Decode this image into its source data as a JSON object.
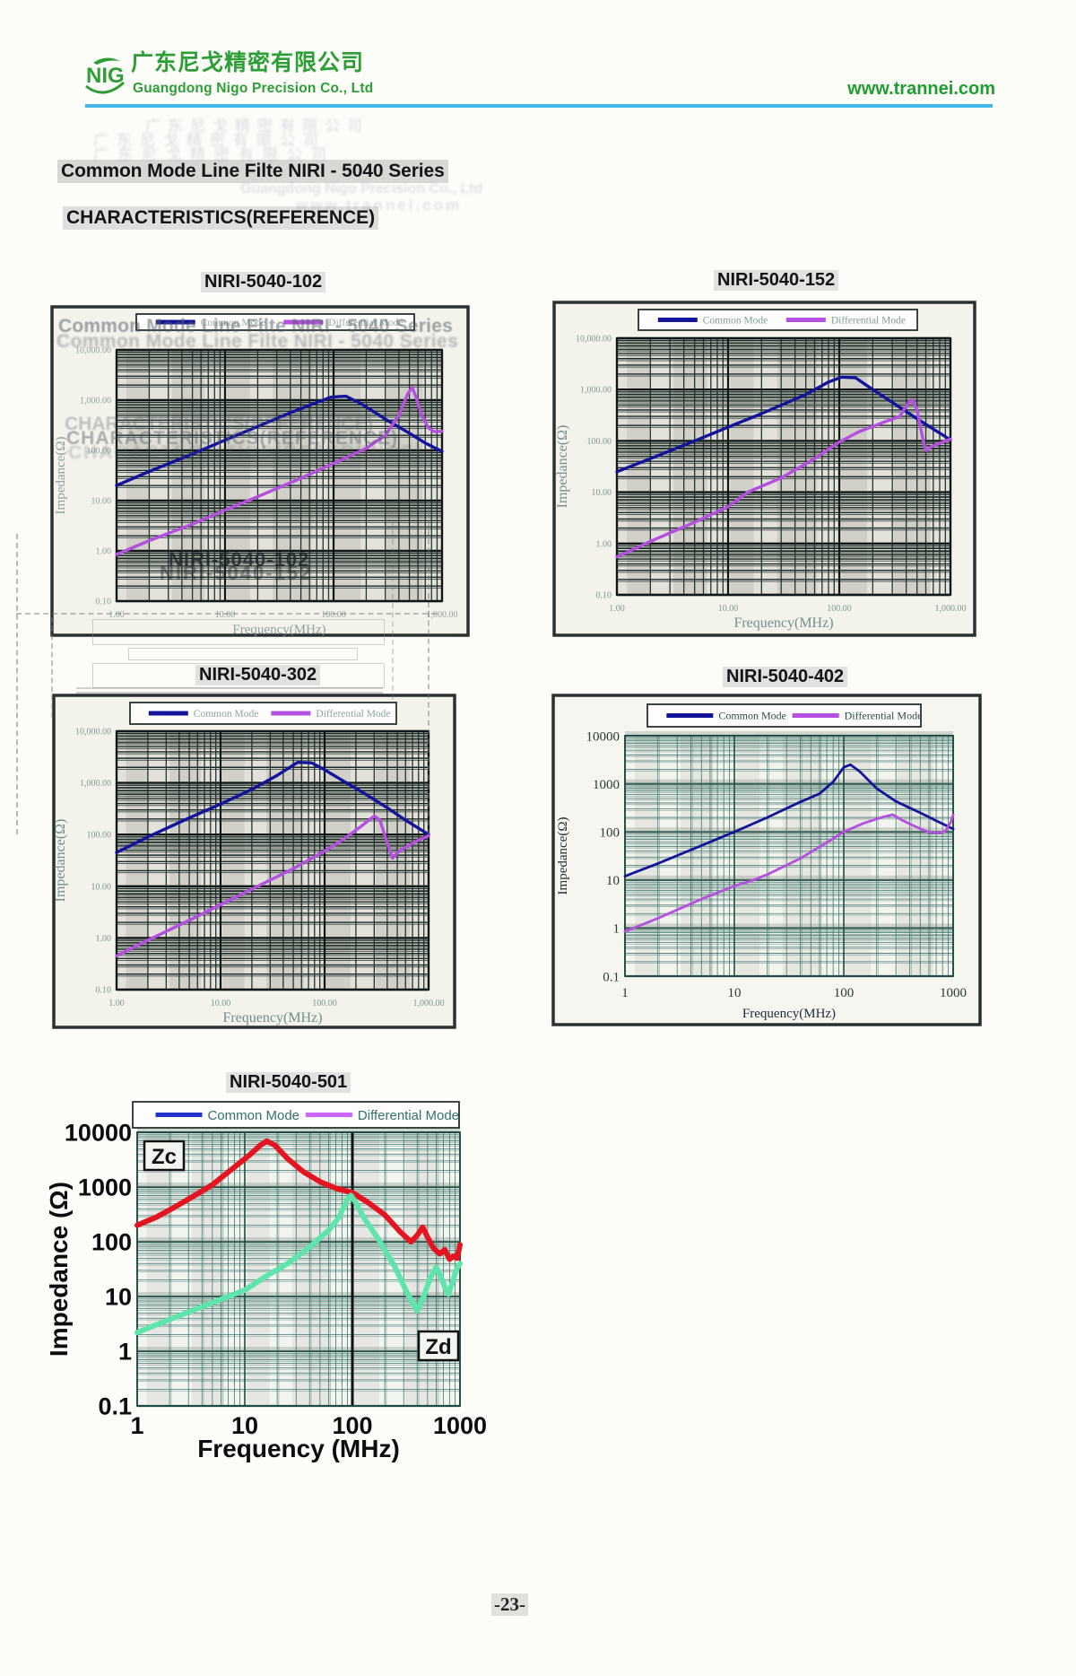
{
  "header": {
    "logo_text": "NIG",
    "company_cn": "广东尼戈精密有限公司",
    "company_en": "Guangdong Nigo Precision Co., Ltd",
    "website": "www.trannei.com",
    "brand_green": "#2e9e36",
    "rule_blue": "#45b6e8"
  },
  "title": "Common Mode Line Filte NIRI - 5040  Series",
  "subtitle": "CHARACTERISTICS(REFERENCE)",
  "page_number": "-23-",
  "ghosts": {
    "cjk_row": "广东尼戈精密有限公司",
    "company_en": "Guangdong Nigo Precision Co., Ltd",
    "website": "www.trannei.com",
    "title": "Common Mode Line Filte NIRI - 5040  Series",
    "subtitle": "CHARACTERISTICS(REFERENCE)",
    "chart102_a": "NIRI-5040-102",
    "chart102_b": "NIRI-5040-152"
  },
  "chart_data": [
    {
      "type": "line",
      "title": "NIRI-5040-102",
      "xlabel": "Frequency(MHz)",
      "ylabel": "Impedance(Ω)",
      "xlim": [
        1,
        1000
      ],
      "ylim": [
        0.1,
        10000
      ],
      "x_ticks": [
        "1.00",
        "10.00",
        "100.00",
        "1,000.00"
      ],
      "y_ticks": [
        "10,000.00",
        "1,000.00",
        "100.00",
        "10.00",
        "1.00",
        "0.10"
      ],
      "legend": [
        {
          "label": "Common Mode",
          "color": "#14149a"
        },
        {
          "label": "Differential Mode",
          "color": "#b44fe0"
        }
      ],
      "series": [
        {
          "name": "Common Mode",
          "color": "#14149a",
          "points": [
            [
              1,
              20
            ],
            [
              2,
              38
            ],
            [
              5,
              85
            ],
            [
              10,
              160
            ],
            [
              20,
              300
            ],
            [
              40,
              560
            ],
            [
              70,
              900
            ],
            [
              95,
              1150
            ],
            [
              130,
              1200
            ],
            [
              180,
              850
            ],
            [
              300,
              420
            ],
            [
              500,
              220
            ],
            [
              700,
              140
            ],
            [
              1000,
              95
            ]
          ]
        },
        {
          "name": "Differential Mode",
          "color": "#b44fe0",
          "points": [
            [
              1,
              0.85
            ],
            [
              2,
              1.6
            ],
            [
              5,
              3.4
            ],
            [
              10,
              6.5
            ],
            [
              20,
              12
            ],
            [
              50,
              28
            ],
            [
              100,
              55
            ],
            [
              200,
              110
            ],
            [
              300,
              200
            ],
            [
              400,
              500
            ],
            [
              480,
              1300
            ],
            [
              530,
              1800
            ],
            [
              580,
              1100
            ],
            [
              650,
              500
            ],
            [
              750,
              280
            ],
            [
              850,
              235
            ],
            [
              1000,
              240
            ]
          ]
        }
      ]
    },
    {
      "type": "line",
      "title": "NIRI-5040-152",
      "xlabel": "Frequency(MHz)",
      "ylabel": "Impedance(Ω)",
      "xlim": [
        1,
        1000
      ],
      "ylim": [
        0.1,
        10000
      ],
      "x_ticks": [
        "1.00",
        "10.00",
        "100.00",
        "1,000.00"
      ],
      "y_ticks": [
        "10,000.00",
        "1,000.00",
        "100.00",
        "10.00",
        "1.00",
        "0.10"
      ],
      "legend": [
        {
          "label": "Common Mode",
          "color": "#14149a"
        },
        {
          "label": "Differential Mode",
          "color": "#b44fe0"
        }
      ],
      "series": [
        {
          "name": "Common Mode",
          "color": "#14149a",
          "points": [
            [
              1,
              25
            ],
            [
              2,
              45
            ],
            [
              5,
              100
            ],
            [
              10,
              185
            ],
            [
              20,
              340
            ],
            [
              50,
              800
            ],
            [
              80,
              1400
            ],
            [
              105,
              1750
            ],
            [
              140,
              1700
            ],
            [
              200,
              1000
            ],
            [
              300,
              560
            ],
            [
              500,
              270
            ],
            [
              700,
              170
            ],
            [
              1000,
              105
            ]
          ]
        },
        {
          "name": "Differential Mode",
          "color": "#b44fe0",
          "points": [
            [
              1,
              0.55
            ],
            [
              2,
              1.1
            ],
            [
              5,
              2.6
            ],
            [
              10,
              5.2
            ],
            [
              15,
              10
            ],
            [
              30,
              19
            ],
            [
              60,
              45
            ],
            [
              100,
              95
            ],
            [
              150,
              150
            ],
            [
              250,
              230
            ],
            [
              350,
              300
            ],
            [
              420,
              560
            ],
            [
              460,
              620
            ],
            [
              500,
              400
            ],
            [
              560,
              120
            ],
            [
              600,
              65
            ],
            [
              680,
              78
            ],
            [
              800,
              90
            ],
            [
              1000,
              108
            ]
          ]
        }
      ]
    },
    {
      "type": "line",
      "title": "NIRI-5040-302",
      "xlabel": "Frequency(MHz)",
      "ylabel": "Impedance(Ω)",
      "xlim": [
        1,
        1000
      ],
      "ylim": [
        0.1,
        10000
      ],
      "x_ticks": [
        "1.00",
        "10.00",
        "100.00",
        "1,000.00"
      ],
      "y_ticks": [
        "10,000.00",
        "1,000.00",
        "100.00",
        "10.00",
        "1.00",
        "0.10"
      ],
      "legend": [
        {
          "label": "Common Mode",
          "color": "#14149a"
        },
        {
          "label": "Differential Mode",
          "color": "#b44fe0"
        }
      ],
      "series": [
        {
          "name": "Common Mode",
          "color": "#14149a",
          "points": [
            [
              1,
              45
            ],
            [
              2,
              90
            ],
            [
              5,
              210
            ],
            [
              10,
              390
            ],
            [
              20,
              750
            ],
            [
              35,
              1400
            ],
            [
              55,
              2500
            ],
            [
              75,
              2450
            ],
            [
              100,
              1800
            ],
            [
              150,
              1100
            ],
            [
              250,
              600
            ],
            [
              400,
              330
            ],
            [
              600,
              190
            ],
            [
              1000,
              100
            ]
          ]
        },
        {
          "name": "Differential Mode",
          "color": "#b44fe0",
          "points": [
            [
              1,
              0.45
            ],
            [
              2,
              0.9
            ],
            [
              5,
              2.2
            ],
            [
              10,
              4.4
            ],
            [
              20,
              8.8
            ],
            [
              50,
              22
            ],
            [
              100,
              48
            ],
            [
              150,
              80
            ],
            [
              220,
              140
            ],
            [
              300,
              230
            ],
            [
              340,
              190
            ],
            [
              400,
              70
            ],
            [
              450,
              35
            ],
            [
              520,
              48
            ],
            [
              650,
              62
            ],
            [
              800,
              78
            ],
            [
              1000,
              95
            ]
          ]
        }
      ]
    },
    {
      "type": "line",
      "title": "NIRI-5040-402",
      "xlabel": "Frequency(MHz)",
      "ylabel": "Impedance(Ω)",
      "xlim": [
        1,
        1000
      ],
      "ylim": [
        0.1,
        10000
      ],
      "x_ticks": [
        "1",
        "10",
        "100",
        "1000"
      ],
      "y_ticks": [
        "10000",
        "1000",
        "100",
        "10",
        "1",
        "0.1"
      ],
      "legend": [
        {
          "label": "Common Mode",
          "color": "#14149a"
        },
        {
          "label": "Differential Mode",
          "color": "#b44fe0"
        }
      ],
      "series": [
        {
          "name": "Common Mode",
          "color": "#14149a",
          "points": [
            [
              1,
              12
            ],
            [
              2,
              22
            ],
            [
              5,
              52
            ],
            [
              10,
              100
            ],
            [
              20,
              200
            ],
            [
              40,
              420
            ],
            [
              60,
              620
            ],
            [
              80,
              1100
            ],
            [
              100,
              2200
            ],
            [
              115,
              2500
            ],
            [
              140,
              1800
            ],
            [
              200,
              800
            ],
            [
              300,
              430
            ],
            [
              500,
              250
            ],
            [
              700,
              170
            ],
            [
              1000,
              115
            ]
          ]
        },
        {
          "name": "Differential Mode",
          "color": "#b44fe0",
          "points": [
            [
              1,
              0.85
            ],
            [
              2,
              1.6
            ],
            [
              5,
              4
            ],
            [
              10,
              7.5
            ],
            [
              15,
              10
            ],
            [
              20,
              13
            ],
            [
              40,
              28
            ],
            [
              70,
              60
            ],
            [
              100,
              100
            ],
            [
              150,
              150
            ],
            [
              220,
              200
            ],
            [
              280,
              228
            ],
            [
              350,
              170
            ],
            [
              450,
              130
            ],
            [
              600,
              98
            ],
            [
              750,
              95
            ],
            [
              850,
              105
            ],
            [
              950,
              160
            ],
            [
              1000,
              225
            ]
          ]
        }
      ]
    },
    {
      "type": "line",
      "title": "NIRI-5040-501",
      "xlabel": "Frequency (MHz)",
      "ylabel": "Impedance (Ω)",
      "xlim": [
        1,
        1000
      ],
      "ylim": [
        0.1,
        10000
      ],
      "x_ticks": [
        "1",
        "10",
        "100",
        "1000"
      ],
      "y_ticks": [
        "10000",
        "1000",
        "100",
        "10",
        "1",
        "0.1"
      ],
      "legend": [
        {
          "label": "Common Mode",
          "color": "#2233cc"
        },
        {
          "label": "Differential Mode",
          "color": "#cc66ff"
        }
      ],
      "annotations": [
        {
          "label": "Zc"
        },
        {
          "label": "Zd"
        }
      ],
      "series": [
        {
          "name": "Zc",
          "color": "#e41420",
          "points": [
            [
              1,
              200
            ],
            [
              1.5,
              280
            ],
            [
              2,
              380
            ],
            [
              3,
              600
            ],
            [
              5,
              1100
            ],
            [
              8,
              2300
            ],
            [
              11,
              3800
            ],
            [
              14,
              5800
            ],
            [
              16,
              6900
            ],
            [
              19,
              5800
            ],
            [
              25,
              3300
            ],
            [
              35,
              1900
            ],
            [
              50,
              1250
            ],
            [
              70,
              950
            ],
            [
              100,
              790
            ],
            [
              140,
              520
            ],
            [
              200,
              310
            ],
            [
              280,
              150
            ],
            [
              350,
              100
            ],
            [
              400,
              130
            ],
            [
              450,
              185
            ],
            [
              500,
              120
            ],
            [
              570,
              75
            ],
            [
              650,
              60
            ],
            [
              720,
              72
            ],
            [
              800,
              48
            ],
            [
              880,
              55
            ],
            [
              940,
              50
            ],
            [
              1000,
              88
            ]
          ]
        },
        {
          "name": "Zd",
          "color": "#5fe4ac",
          "points": [
            [
              1,
              2.2
            ],
            [
              2,
              3.8
            ],
            [
              4,
              6.5
            ],
            [
              7,
              10
            ],
            [
              10,
              13
            ],
            [
              15,
              22
            ],
            [
              25,
              40
            ],
            [
              40,
              80
            ],
            [
              60,
              160
            ],
            [
              75,
              280
            ],
            [
              90,
              600
            ],
            [
              97,
              700
            ],
            [
              105,
              560
            ],
            [
              130,
              260
            ],
            [
              170,
              120
            ],
            [
              250,
              34
            ],
            [
              320,
              12
            ],
            [
              400,
              5.5
            ],
            [
              460,
              10
            ],
            [
              530,
              22
            ],
            [
              600,
              34
            ],
            [
              660,
              24
            ],
            [
              720,
              15
            ],
            [
              780,
              11
            ],
            [
              850,
              18
            ],
            [
              920,
              30
            ],
            [
              1000,
              40
            ]
          ]
        }
      ]
    }
  ]
}
